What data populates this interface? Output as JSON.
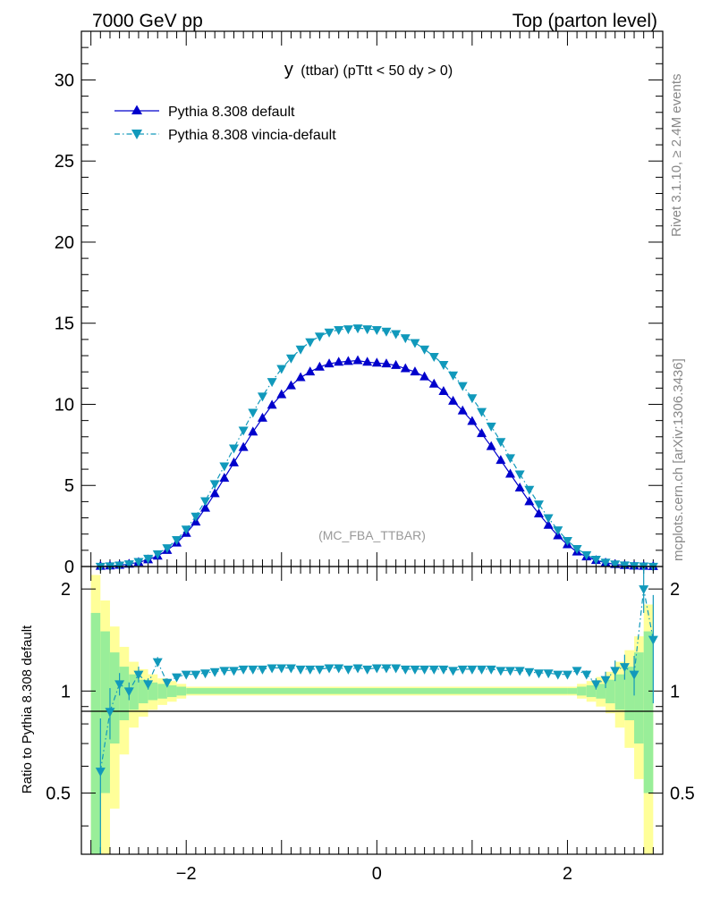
{
  "header": {
    "energy": "7000 GeV pp",
    "process": "Top (parton level)"
  },
  "side_labels": {
    "rivet": "Rivet 3.1.10, ≥ 2.4M events",
    "mcplots": "mcplots.cern.ch [arXiv:1306.3436]"
  },
  "chart_data": [
    {
      "type": "line",
      "title_main": "y",
      "title_sub": "(ttbar) (pTtt < 50 dy > 0)",
      "watermark": "(MC_FBA_TTBAR)",
      "xlim": [
        -3.1,
        3.0
      ],
      "ylim": [
        0,
        33
      ],
      "yticks": [
        0,
        5,
        10,
        15,
        20,
        25,
        30
      ],
      "xticks": [
        -2,
        0,
        2
      ],
      "legend_position": "top-left",
      "series": [
        {
          "name": "Pythia 8.308 default",
          "color": "#0000cc",
          "marker": "triangle-up",
          "line_style": "solid",
          "x": [
            -2.9,
            -2.8,
            -2.7,
            -2.6,
            -2.5,
            -2.4,
            -2.3,
            -2.2,
            -2.1,
            -2.0,
            -1.9,
            -1.8,
            -1.7,
            -1.6,
            -1.5,
            -1.4,
            -1.3,
            -1.2,
            -1.1,
            -1.0,
            -0.9,
            -0.8,
            -0.7,
            -0.6,
            -0.5,
            -0.4,
            -0.3,
            -0.2,
            -0.1,
            0.0,
            0.1,
            0.2,
            0.3,
            0.4,
            0.5,
            0.6,
            0.7,
            0.8,
            0.9,
            1.0,
            1.1,
            1.2,
            1.3,
            1.4,
            1.5,
            1.6,
            1.7,
            1.8,
            1.9,
            2.0,
            2.1,
            2.2,
            2.3,
            2.4,
            2.5,
            2.6,
            2.7,
            2.8,
            2.9
          ],
          "y": [
            0.02,
            0.04,
            0.08,
            0.15,
            0.26,
            0.42,
            0.65,
            1.0,
            1.45,
            2.05,
            2.75,
            3.6,
            4.5,
            5.45,
            6.4,
            7.35,
            8.3,
            9.15,
            9.95,
            10.6,
            11.15,
            11.65,
            12.0,
            12.3,
            12.5,
            12.6,
            12.65,
            12.7,
            12.6,
            12.55,
            12.5,
            12.4,
            12.2,
            12.0,
            11.7,
            11.25,
            10.8,
            10.2,
            9.6,
            8.95,
            8.2,
            7.4,
            6.55,
            5.7,
            4.85,
            4.0,
            3.25,
            2.55,
            1.9,
            1.35,
            0.9,
            0.6,
            0.38,
            0.23,
            0.13,
            0.07,
            0.035,
            0.018,
            0.01
          ]
        },
        {
          "name": "Pythia 8.308 vincia-default",
          "color": "#1199bb",
          "marker": "triangle-down",
          "line_style": "dash-dot",
          "x": [
            -2.9,
            -2.8,
            -2.7,
            -2.6,
            -2.5,
            -2.4,
            -2.3,
            -2.2,
            -2.1,
            -2.0,
            -1.9,
            -1.8,
            -1.7,
            -1.6,
            -1.5,
            -1.4,
            -1.3,
            -1.2,
            -1.1,
            -1.0,
            -0.9,
            -0.8,
            -0.7,
            -0.6,
            -0.5,
            -0.4,
            -0.3,
            -0.2,
            -0.1,
            0.0,
            0.1,
            0.2,
            0.3,
            0.4,
            0.5,
            0.6,
            0.7,
            0.8,
            0.9,
            1.0,
            1.1,
            1.2,
            1.3,
            1.4,
            1.5,
            1.6,
            1.7,
            1.8,
            1.9,
            2.0,
            2.1,
            2.2,
            2.3,
            2.4,
            2.5,
            2.6,
            2.7,
            2.8,
            2.9
          ],
          "y": [
            0.01,
            0.035,
            0.08,
            0.16,
            0.3,
            0.5,
            0.78,
            1.15,
            1.65,
            2.3,
            3.1,
            4.05,
            5.1,
            6.2,
            7.3,
            8.4,
            9.5,
            10.5,
            11.4,
            12.2,
            12.85,
            13.4,
            13.85,
            14.2,
            14.45,
            14.6,
            14.65,
            14.7,
            14.65,
            14.6,
            14.5,
            14.35,
            14.1,
            13.8,
            13.4,
            12.95,
            12.45,
            11.8,
            11.15,
            10.4,
            9.55,
            8.65,
            7.7,
            6.7,
            5.7,
            4.75,
            3.85,
            3.0,
            2.25,
            1.6,
            1.1,
            0.72,
            0.44,
            0.26,
            0.15,
            0.09,
            0.05,
            0.03,
            0.01
          ]
        }
      ]
    },
    {
      "type": "line",
      "ylabel": "Ratio to Pythia 8.308 default",
      "xlim": [
        -3.1,
        3.0
      ],
      "ylim": [
        0.33,
        2.33
      ],
      "yticks": [
        0.5,
        1,
        2
      ],
      "xticks": [
        -2,
        0,
        2
      ],
      "bands": {
        "green_color": "#99ee99",
        "yellow_color": "#ffff99",
        "bins_x": [
          -3.0,
          -2.9,
          -2.8,
          -2.7,
          -2.6,
          -2.5,
          -2.4,
          -2.3,
          -2.2,
          -2.1,
          -2.0,
          2.0,
          2.1,
          2.2,
          2.3,
          2.4,
          2.5,
          2.6,
          2.7,
          2.8,
          2.9
        ],
        "green_half": [
          0.7,
          0.5,
          0.3,
          0.18,
          0.12,
          0.08,
          0.06,
          0.05,
          0.04,
          0.03,
          0.02,
          0.02,
          0.03,
          0.04,
          0.05,
          0.08,
          0.12,
          0.18,
          0.3,
          0.5
        ],
        "yellow_half": [
          1.2,
          0.85,
          0.55,
          0.35,
          0.22,
          0.16,
          0.12,
          0.09,
          0.07,
          0.05,
          0.03,
          0.03,
          0.05,
          0.07,
          0.1,
          0.14,
          0.22,
          0.32,
          0.45,
          0.8
        ]
      },
      "series": [
        {
          "name": "Pythia 8.308 vincia-default",
          "color": "#1199bb",
          "x": [
            -2.9,
            -2.8,
            -2.7,
            -2.6,
            -2.5,
            -2.4,
            -2.3,
            -2.2,
            -2.1,
            -2.0,
            -1.9,
            -1.8,
            -1.7,
            -1.6,
            -1.5,
            -1.4,
            -1.3,
            -1.2,
            -1.1,
            -1.0,
            -0.9,
            -0.8,
            -0.7,
            -0.6,
            -0.5,
            -0.4,
            -0.3,
            -0.2,
            -0.1,
            0.0,
            0.1,
            0.2,
            0.3,
            0.4,
            0.5,
            0.6,
            0.7,
            0.8,
            0.9,
            1.0,
            1.1,
            1.2,
            1.3,
            1.4,
            1.5,
            1.6,
            1.7,
            1.8,
            1.9,
            2.0,
            2.1,
            2.2,
            2.3,
            2.4,
            2.5,
            2.6,
            2.7,
            2.8,
            2.9
          ],
          "y": [
            0.58,
            0.87,
            1.05,
            1.0,
            1.12,
            1.05,
            1.22,
            1.06,
            1.1,
            1.12,
            1.12,
            1.13,
            1.14,
            1.15,
            1.15,
            1.16,
            1.16,
            1.16,
            1.17,
            1.17,
            1.17,
            1.16,
            1.16,
            1.16,
            1.17,
            1.17,
            1.16,
            1.17,
            1.16,
            1.17,
            1.17,
            1.17,
            1.16,
            1.16,
            1.16,
            1.16,
            1.16,
            1.15,
            1.16,
            1.16,
            1.16,
            1.16,
            1.15,
            1.15,
            1.15,
            1.14,
            1.13,
            1.13,
            1.12,
            1.12,
            1.15,
            1.12,
            1.05,
            1.08,
            1.15,
            1.18,
            1.12,
            2.0,
            1.42
          ],
          "err": [
            0.25,
            0.15,
            0.08,
            0.06,
            0.06,
            0.04,
            0.04,
            0.03,
            0.02,
            0.02,
            0.01,
            0.01,
            0.01,
            0.01,
            0.01,
            0.01,
            0.01,
            0.01,
            0.01,
            0.01,
            0.01,
            0.01,
            0.01,
            0.01,
            0.01,
            0.01,
            0.01,
            0.01,
            0.01,
            0.01,
            0.01,
            0.01,
            0.01,
            0.01,
            0.01,
            0.01,
            0.01,
            0.01,
            0.01,
            0.01,
            0.01,
            0.01,
            0.01,
            0.01,
            0.01,
            0.01,
            0.01,
            0.01,
            0.01,
            0.02,
            0.02,
            0.03,
            0.04,
            0.06,
            0.08,
            0.1,
            0.15,
            0.3,
            0.5
          ]
        }
      ]
    }
  ]
}
